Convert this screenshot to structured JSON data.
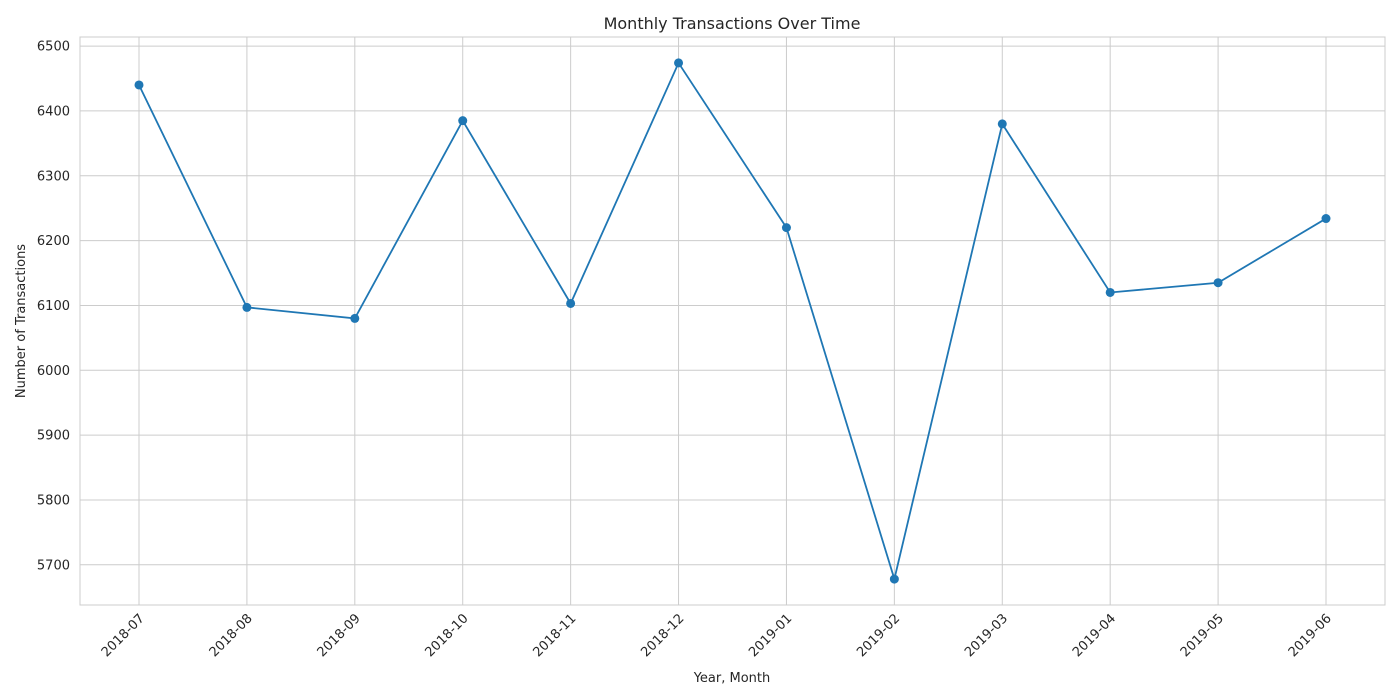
{
  "chart_data": {
    "type": "line",
    "title": "Monthly Transactions Over Time",
    "xlabel": "Year, Month",
    "ylabel": "Number of Transactions",
    "categories": [
      "2018-07",
      "2018-08",
      "2018-09",
      "2018-10",
      "2018-11",
      "2018-12",
      "2019-01",
      "2019-02",
      "2019-03",
      "2019-04",
      "2019-05",
      "2019-06"
    ],
    "series": [
      {
        "values": [
          6440,
          6097,
          6080,
          6385,
          6103,
          6474,
          6220,
          5678,
          6380,
          6120,
          6135,
          6234
        ],
        "color": "#1f77b4"
      }
    ],
    "ylim": [
      5638,
      6514
    ],
    "yticks": [
      5700,
      5800,
      5900,
      6000,
      6100,
      6200,
      6300,
      6400,
      6500
    ],
    "grid": true,
    "marker": "circle"
  }
}
